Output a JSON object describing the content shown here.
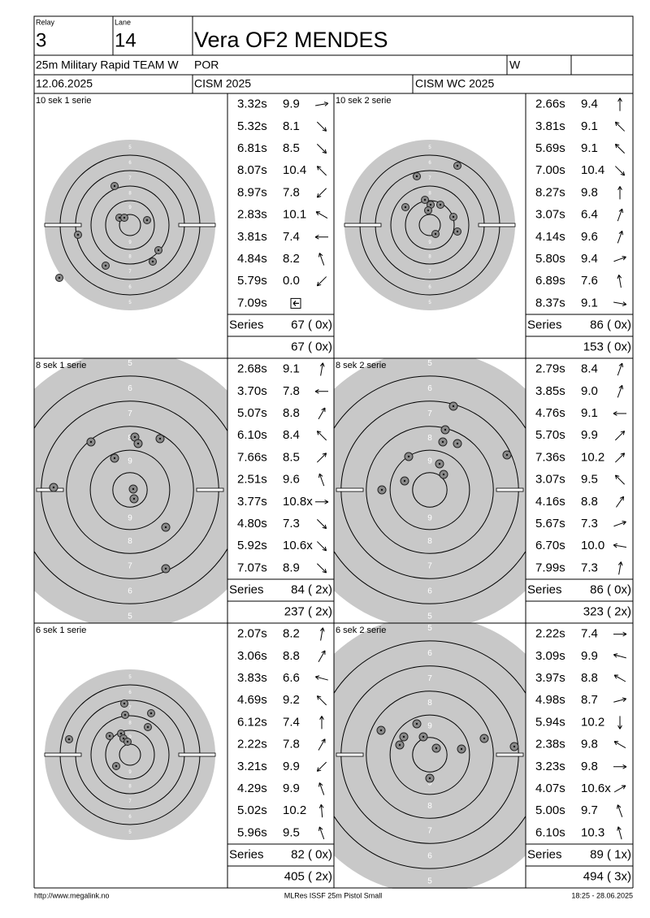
{
  "header": {
    "relay_label": "Relay",
    "relay": "3",
    "lane_label": "Lane",
    "lane": "14",
    "name": "Vera OF2 MENDES",
    "event": "25m Military Rapid TEAM W",
    "country": "POR",
    "gender": "W",
    "date": "12.06.2025",
    "competition": "CISM 2025",
    "match": "CISM WC 2025"
  },
  "ring_labels": [
    "5",
    "6",
    "7",
    "8",
    "9"
  ],
  "series_label": "Series",
  "panels": [
    {
      "title": "10 sek 1 serie",
      "shots": [
        {
          "time": "3.32s",
          "score": "9.9"
        },
        {
          "time": "5.32s",
          "score": "8.1"
        },
        {
          "time": "6.81s",
          "score": "8.5"
        },
        {
          "time": "8.07s",
          "score": "10.4"
        },
        {
          "time": "8.97s",
          "score": "7.8"
        },
        {
          "time": "2.83s",
          "score": "10.1"
        },
        {
          "time": "3.81s",
          "score": "7.4"
        },
        {
          "time": "4.84s",
          "score": "8.2"
        },
        {
          "time": "5.79s",
          "score": "0.0"
        },
        {
          "time": "7.09s"
        }
      ],
      "series_total": "67 ( 0x)",
      "cumulative": "67 ( 0x)"
    },
    {
      "title": "10 sek 2 serie",
      "shots": [
        {
          "time": "2.66s",
          "score": "9.4"
        },
        {
          "time": "3.81s",
          "score": "9.1"
        },
        {
          "time": "5.69s",
          "score": "9.1"
        },
        {
          "time": "7.00s",
          "score": "10.4"
        },
        {
          "time": "8.27s",
          "score": "9.8"
        },
        {
          "time": "3.07s",
          "score": "6.4"
        },
        {
          "time": "4.14s",
          "score": "9.6"
        },
        {
          "time": "5.80s",
          "score": "9.4"
        },
        {
          "time": "6.89s",
          "score": "7.6"
        },
        {
          "time": "8.37s",
          "score": "9.1"
        }
      ],
      "series_total": "86 ( 0x)",
      "cumulative": "153 ( 0x)"
    },
    {
      "title": "8 sek 1 serie",
      "shots": [
        {
          "time": "2.68s",
          "score": "9.1"
        },
        {
          "time": "3.70s",
          "score": "7.8"
        },
        {
          "time": "5.07s",
          "score": "8.8"
        },
        {
          "time": "6.10s",
          "score": "8.4"
        },
        {
          "time": "7.66s",
          "score": "8.5"
        },
        {
          "time": "2.51s",
          "score": "9.6"
        },
        {
          "time": "3.77s",
          "score": "10.8x"
        },
        {
          "time": "4.80s",
          "score": "7.3"
        },
        {
          "time": "5.92s",
          "score": "10.6x"
        },
        {
          "time": "7.07s",
          "score": "8.9"
        }
      ],
      "series_total": "84 ( 2x)",
      "cumulative": "237 ( 2x)"
    },
    {
      "title": "8 sek 2 serie",
      "shots": [
        {
          "time": "2.79s",
          "score": "8.4"
        },
        {
          "time": "3.85s",
          "score": "9.0"
        },
        {
          "time": "4.76s",
          "score": "9.1"
        },
        {
          "time": "5.70s",
          "score": "9.9"
        },
        {
          "time": "7.36s",
          "score": "10.2"
        },
        {
          "time": "3.07s",
          "score": "9.5"
        },
        {
          "time": "4.16s",
          "score": "8.8"
        },
        {
          "time": "5.67s",
          "score": "7.3"
        },
        {
          "time": "6.70s",
          "score": "10.0"
        },
        {
          "time": "7.99s",
          "score": "7.3"
        }
      ],
      "series_total": "86 ( 0x)",
      "cumulative": "323 ( 2x)"
    },
    {
      "title": "6 sek 1 serie",
      "shots": [
        {
          "time": "2.07s",
          "score": "8.2"
        },
        {
          "time": "3.06s",
          "score": "8.8"
        },
        {
          "time": "3.83s",
          "score": "6.6"
        },
        {
          "time": "4.69s",
          "score": "9.2"
        },
        {
          "time": "6.12s",
          "score": "7.4"
        },
        {
          "time": "2.22s",
          "score": "7.8"
        },
        {
          "time": "3.21s",
          "score": "9.9"
        },
        {
          "time": "4.29s",
          "score": "9.9"
        },
        {
          "time": "5.02s",
          "score": "10.2"
        },
        {
          "time": "5.96s",
          "score": "9.5"
        }
      ],
      "series_total": "82 ( 0x)",
      "cumulative": "405 ( 2x)"
    },
    {
      "title": "6 sek 2 serie",
      "shots": [
        {
          "time": "2.22s",
          "score": "7.4"
        },
        {
          "time": "3.09s",
          "score": "9.9"
        },
        {
          "time": "3.97s",
          "score": "8.8"
        },
        {
          "time": "4.98s",
          "score": "8.7"
        },
        {
          "time": "5.94s",
          "score": "10.2"
        },
        {
          "time": "2.38s",
          "score": "9.8"
        },
        {
          "time": "3.23s",
          "score": "9.8"
        },
        {
          "time": "4.07s",
          "score": "10.6x"
        },
        {
          "time": "5.00s",
          "score": "9.7"
        },
        {
          "time": "6.10s",
          "score": "10.3"
        }
      ],
      "series_total": "89 ( 1x)",
      "cumulative": "494 ( 3x)"
    }
  ],
  "footer": {
    "url": "http://www.megalink.no",
    "software": "MLRes ISSF 25m Pistol Small",
    "timestamp": "18:25 - 28.06.2025"
  }
}
